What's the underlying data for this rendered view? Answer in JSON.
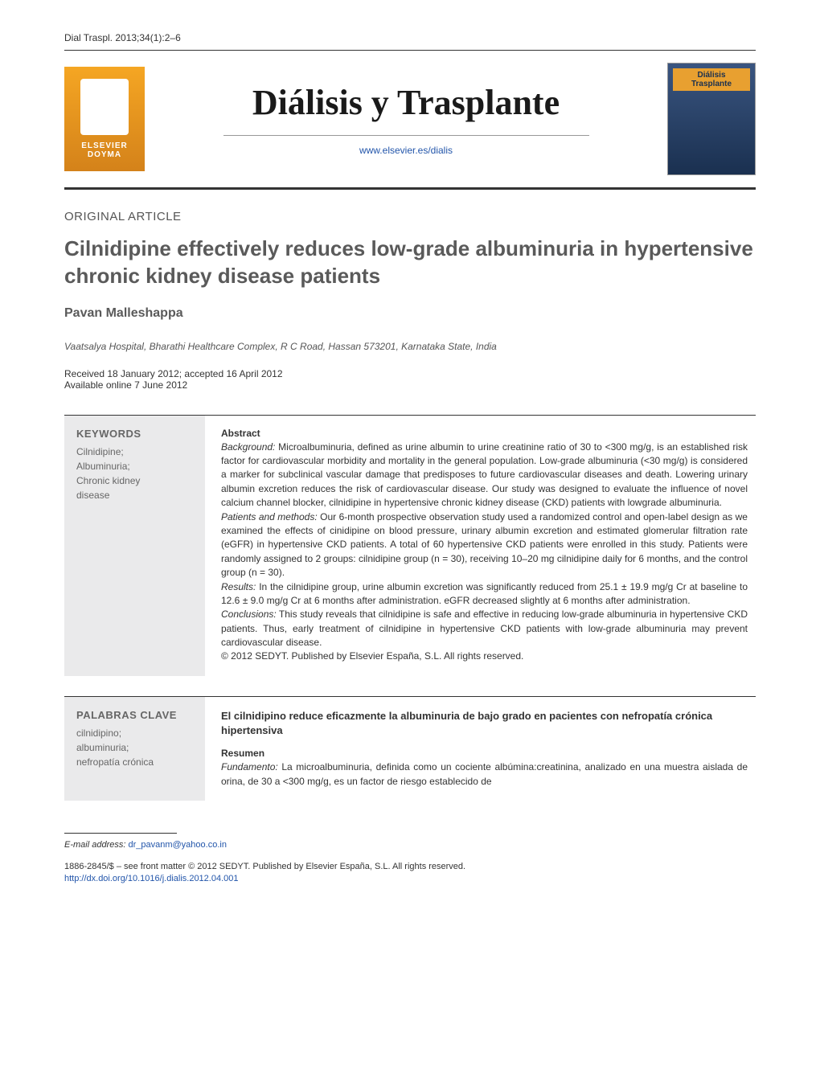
{
  "header": {
    "citation": "Dial Traspl. 2013;34(1):2–6",
    "journal_title": "Diálisis y Trasplante",
    "journal_url": "www.elsevier.es/dialis",
    "publisher_logo_line1": "ELSEVIER",
    "publisher_logo_line2": "DOYMA",
    "cover_line1": "Diálisis",
    "cover_line2": "Trasplante"
  },
  "article": {
    "type": "ORIGINAL ARTICLE",
    "title": "Cilnidipine effectively reduces low-grade albuminuria in hypertensive chronic kidney disease patients",
    "author": "Pavan Malleshappa",
    "affiliation": "Vaatsalya Hospital, Bharathi Healthcare Complex, R C Road, Hassan 573201, Karnataka State, India",
    "received": "Received 18 January 2012; accepted 16 April 2012",
    "available": "Available online 7 June 2012"
  },
  "keywords_en": {
    "heading": "KEYWORDS",
    "items": "Cilnidipine;\nAlbuminuria;\nChronic kidney\ndisease"
  },
  "abstract_en": {
    "heading": "Abstract",
    "background_label": "Background:",
    "background": " Microalbuminuria, defined as urine albumin to urine creatinine ratio of 30 to <300 mg/g, is an established risk factor for cardiovascular morbidity and mortality in the general population. Low-grade albuminuria (<30 mg/g) is considered a marker for subclinical vascular damage that predisposes to future cardiovascular diseases and death. Lowering urinary albumin excretion reduces the risk of cardiovascular disease. Our study was designed to evaluate the influence of novel calcium channel blocker, cilnidipine in hypertensive chronic kidney disease (CKD) patients with lowgrade albuminuria.",
    "methods_label": "Patients and methods:",
    "methods": " Our 6-month prospective observation study used a randomized control and open-label design as we examined the effects of cinidipine on blood pressure, urinary albumin excretion and estimated glomerular filtration rate (eGFR) in hypertensive CKD patients. A total of 60 hypertensive CKD patients were enrolled in this study. Patients were randomly assigned to 2 groups: cilnidipine group (n = 30), receiving 10–20 mg cilnidipine daily for 6 months, and the control group (n = 30).",
    "results_label": "Results:",
    "results": " In the cilnidipine group, urine albumin excretion was significantly reduced from 25.1 ± 19.9 mg/g Cr at baseline to 12.6 ± 9.0 mg/g Cr at 6 months after administration. eGFR decreased slightly at 6 months after administration.",
    "conclusions_label": "Conclusions:",
    "conclusions": " This study reveals that cilnidipine is safe and effective in reducing low-grade albuminuria in hypertensive CKD patients. Thus, early treatment of cilnidipine in hypertensive CKD patients with low-grade albuminuria may prevent cardiovascular disease.",
    "copyright": "© 2012 SEDYT. Published by Elsevier España, S.L. All rights reserved."
  },
  "keywords_es": {
    "heading": "PALABRAS CLAVE",
    "items": "cilnidipino;\nalbuminuria;\nnefropatía crónica"
  },
  "abstract_es": {
    "title": "El cilnidipino reduce eficazmente la albuminuria de bajo grado en pacientes con nefropatía crónica hipertensiva",
    "heading": "Resumen",
    "fundamento_label": "Fundamento:",
    "fundamento": " La microalbuminuria, definida como un cociente albúmina:creatinina, analizado en una muestra aislada de orina, de 30 a <300 mg/g, es un factor de riesgo establecido de"
  },
  "footer": {
    "email_label": "E-mail address:",
    "email": "dr_pavanm@yahoo.co.in",
    "issn_line": "1886-2845/$ – see front matter © 2012 SEDYT. Published by Elsevier España, S.L. All rights reserved.",
    "doi": "http://dx.doi.org/10.1016/j.dialis.2012.04.001"
  },
  "colors": {
    "logo_bg": "#d4821a",
    "cover_bg": "#1a3050",
    "link": "#2255aa",
    "keywords_bg": "#eaeaeb",
    "text_gray": "#5a5a5a"
  }
}
